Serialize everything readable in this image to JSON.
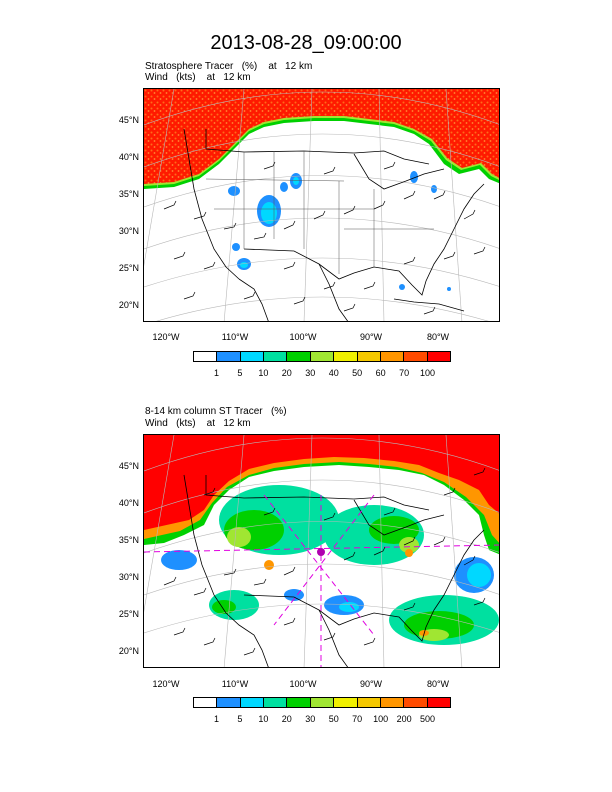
{
  "title": "2013-08-28_09:00:00",
  "panels": [
    {
      "line1": "Stratosphere Tracer   (%)    at   12 km",
      "line2": "Wind   (kts)    at   12 km",
      "lat_labels": [
        "45°N",
        "40°N",
        "35°N",
        "30°N",
        "25°N",
        "20°N"
      ],
      "lon_labels": [
        "120°W",
        "110°W",
        "100°W",
        "90°W",
        "80°W"
      ],
      "colorbar_labels": [
        "1",
        "5",
        "10",
        "20",
        "30",
        "40",
        "50",
        "60",
        "70",
        "100"
      ]
    },
    {
      "line1": "8-14 km column ST Tracer   (%)",
      "line2": "Wind   (kts)    at   12 km",
      "lat_labels": [
        "45°N",
        "40°N",
        "35°N",
        "30°N",
        "25°N",
        "20°N"
      ],
      "lon_labels": [
        "120°W",
        "110°W",
        "100°W",
        "90°W",
        "80°W"
      ],
      "colorbar_labels": [
        "1",
        "5",
        "10",
        "20",
        "30",
        "50",
        "70",
        "100",
        "200",
        "500"
      ]
    }
  ],
  "colorbar_colors": [
    "#ffffff",
    "#1e90ff",
    "#00d8ff",
    "#00e0a0",
    "#00d000",
    "#a0e632",
    "#f0f000",
    "#f5c800",
    "#ff9600",
    "#ff4b00",
    "#ff0000"
  ]
}
